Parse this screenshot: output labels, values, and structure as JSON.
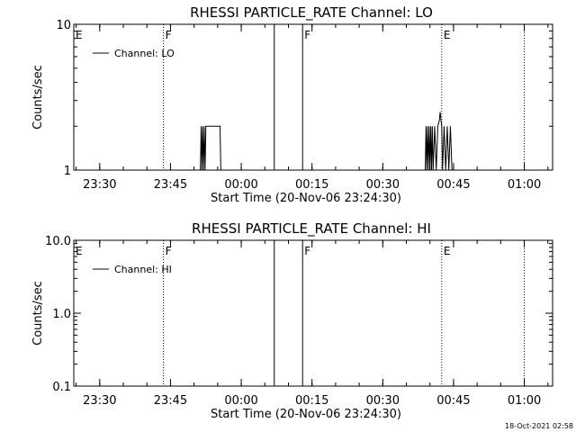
{
  "timestamp": "18-Oct-2021 02:58",
  "chart_data": [
    {
      "type": "line",
      "title": "RHESSI PARTICLE_RATE Channel: LO",
      "xlabel": "Start Time (20-Nov-06 23:24:30)",
      "ylabel": "Counts/sec",
      "yscale": "log",
      "xlim": [
        "23:24:30",
        "01:06:00"
      ],
      "ylim": [
        1,
        10
      ],
      "xticks": [
        "23:30",
        "23:45",
        "00:00",
        "00:15",
        "00:30",
        "00:45",
        "01:00"
      ],
      "yticks": [
        "1",
        "10"
      ],
      "legend": "Channel: LO",
      "annotations": [
        {
          "label": "E",
          "time": "23:24:30",
          "line": "none"
        },
        {
          "label": "F",
          "time": "23:43:30",
          "line": "dotted"
        },
        {
          "label": "",
          "time": "00:07:00",
          "line": "solid"
        },
        {
          "label": "F",
          "time": "00:13:00",
          "line": "solid"
        },
        {
          "label": "E",
          "time": "00:42:30",
          "line": "dotted"
        },
        {
          "label": "",
          "time": "01:00:00",
          "line": "dotted"
        }
      ],
      "series": [
        {
          "name": "Channel: LO",
          "points": [
            [
              "23:24:30",
              1
            ],
            [
              "23:51:20",
              1
            ],
            [
              "23:51:30",
              2
            ],
            [
              "23:51:40",
              1
            ],
            [
              "23:51:50",
              2
            ],
            [
              "23:52:00",
              1
            ],
            [
              "23:52:10",
              2
            ],
            [
              "23:52:20",
              1
            ],
            [
              "23:52:30",
              2
            ],
            [
              "23:52:40",
              2
            ],
            [
              "23:55:30",
              2
            ],
            [
              "23:55:40",
              1
            ],
            [
              "00:39:00",
              1
            ],
            [
              "00:39:10",
              2
            ],
            [
              "00:39:20",
              1
            ],
            [
              "00:39:30",
              2
            ],
            [
              "00:39:40",
              1
            ],
            [
              "00:39:50",
              2
            ],
            [
              "00:40:00",
              1
            ],
            [
              "00:40:10",
              2
            ],
            [
              "00:40:20",
              1
            ],
            [
              "00:40:30",
              2
            ],
            [
              "00:40:40",
              1
            ],
            [
              "00:41:00",
              2
            ],
            [
              "00:41:20",
              1
            ],
            [
              "00:41:40",
              2
            ],
            [
              "00:42:00",
              2.2
            ],
            [
              "00:42:10",
              2.5
            ],
            [
              "00:42:20",
              2.2
            ],
            [
              "00:42:30",
              2
            ],
            [
              "00:42:40",
              1
            ],
            [
              "00:43:00",
              2
            ],
            [
              "00:43:20",
              1
            ],
            [
              "00:43:40",
              2
            ],
            [
              "00:44:00",
              1
            ],
            [
              "00:44:20",
              2
            ],
            [
              "00:44:40",
              1
            ],
            [
              "00:45:00",
              1
            ]
          ]
        }
      ]
    },
    {
      "type": "line",
      "title": "RHESSI PARTICLE_RATE Channel: HI",
      "xlabel": "Start Time (20-Nov-06 23:24:30)",
      "ylabel": "Counts/sec",
      "yscale": "log",
      "xlim": [
        "23:24:30",
        "01:06:00"
      ],
      "ylim": [
        0.1,
        10
      ],
      "xticks": [
        "23:30",
        "23:45",
        "00:00",
        "00:15",
        "00:30",
        "00:45",
        "01:00"
      ],
      "yticks": [
        "0.1",
        "1.0",
        "10.0"
      ],
      "legend": "Channel: HI",
      "annotations": [
        {
          "label": "E",
          "time": "23:24:30",
          "line": "none"
        },
        {
          "label": "F",
          "time": "23:43:30",
          "line": "dotted"
        },
        {
          "label": "",
          "time": "00:07:00",
          "line": "solid"
        },
        {
          "label": "F",
          "time": "00:13:00",
          "line": "solid"
        },
        {
          "label": "E",
          "time": "00:42:30",
          "line": "dotted"
        },
        {
          "label": "",
          "time": "01:00:00",
          "line": "dotted"
        }
      ],
      "series": [
        {
          "name": "Channel: HI",
          "points": []
        }
      ]
    }
  ]
}
